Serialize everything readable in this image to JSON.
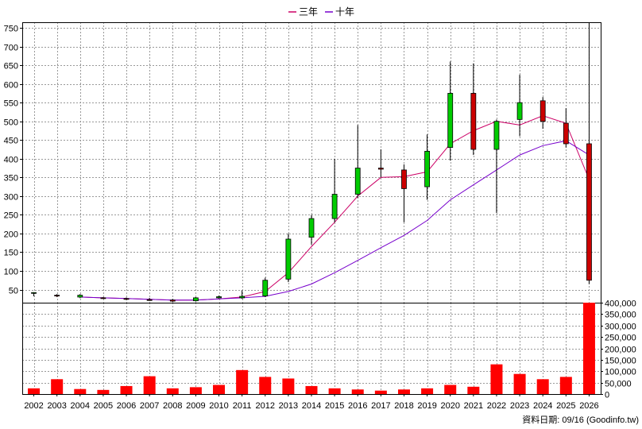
{
  "chart_data": {
    "type": "candlestick",
    "legend": [
      {
        "name": "三年",
        "color": "#cc0066"
      },
      {
        "name": "十年",
        "color": "#7700cc"
      }
    ],
    "legend_position": "top-center",
    "grid": true,
    "footer": "資料日期: 09/16 (Goodinfo.tw)",
    "price_axis": {
      "ticks": [
        50,
        100,
        150,
        200,
        250,
        300,
        350,
        400,
        450,
        500,
        550,
        600,
        650,
        700,
        750
      ],
      "range": [
        15,
        765
      ]
    },
    "volume_axis": {
      "ticks": [
        "0",
        "50,000",
        "100,000",
        "150,000",
        "200,000",
        "250,000",
        "300,000",
        "350,000",
        "400,000"
      ],
      "range": [
        0,
        400000
      ]
    },
    "years": [
      "2002",
      "2003",
      "2004",
      "2005",
      "2006",
      "2007",
      "2008",
      "2009",
      "2010",
      "2011",
      "2012",
      "2013",
      "2014",
      "2015",
      "2016",
      "2017",
      "2018",
      "2019",
      "2020",
      "2021",
      "2022",
      "2023",
      "2024",
      "2025",
      "2026"
    ],
    "candles": [
      {
        "open": 40,
        "high": 43,
        "low": 32,
        "close": 42
      },
      {
        "open": 35,
        "high": 38,
        "low": 30,
        "close": 34
      },
      {
        "open": 30,
        "high": 38,
        "low": 27,
        "close": 35
      },
      {
        "open": 28,
        "high": 30,
        "low": 25,
        "close": 27
      },
      {
        "open": 26,
        "high": 29,
        "low": 22,
        "close": 24
      },
      {
        "open": 23,
        "high": 28,
        "low": 20,
        "close": 22
      },
      {
        "open": 22,
        "high": 25,
        "low": 17,
        "close": 19
      },
      {
        "open": 20,
        "high": 30,
        "low": 18,
        "close": 28
      },
      {
        "open": 28,
        "high": 34,
        "low": 26,
        "close": 31
      },
      {
        "open": 28,
        "high": 48,
        "low": 25,
        "close": 32
      },
      {
        "open": 33,
        "high": 82,
        "low": 30,
        "close": 75
      },
      {
        "open": 78,
        "high": 200,
        "low": 70,
        "close": 185
      },
      {
        "open": 190,
        "high": 250,
        "low": 170,
        "close": 240
      },
      {
        "open": 240,
        "high": 400,
        "low": 230,
        "close": 305
      },
      {
        "open": 305,
        "high": 490,
        "low": 295,
        "close": 375
      },
      {
        "open": 375,
        "high": 425,
        "low": 350,
        "close": 372
      },
      {
        "open": 370,
        "high": 385,
        "low": 230,
        "close": 320
      },
      {
        "open": 325,
        "high": 465,
        "low": 290,
        "close": 420
      },
      {
        "open": 430,
        "high": 660,
        "low": 395,
        "close": 575
      },
      {
        "open": 575,
        "high": 655,
        "low": 410,
        "close": 425
      },
      {
        "open": 425,
        "high": 505,
        "low": 255,
        "close": 500
      },
      {
        "open": 505,
        "high": 625,
        "low": 460,
        "close": 550
      },
      {
        "open": 555,
        "high": 565,
        "low": 480,
        "close": 500
      },
      {
        "open": 495,
        "high": 535,
        "low": 430,
        "close": 440
      },
      {
        "open": 440,
        "high": 765,
        "low": 65,
        "close": 75
      }
    ],
    "series": [
      {
        "name": "三年",
        "values": [
          null,
          null,
          30,
          28,
          26,
          24,
          22,
          22,
          25,
          30,
          45,
          95,
          165,
          230,
          300,
          350,
          352,
          365,
          440,
          475,
          500,
          490,
          515,
          495,
          345
        ]
      },
      {
        "name": "十年",
        "values": [
          null,
          null,
          30,
          28,
          26,
          24,
          22,
          22,
          25,
          28,
          32,
          45,
          65,
          95,
          128,
          162,
          195,
          235,
          290,
          330,
          370,
          410,
          435,
          448,
          410
        ]
      }
    ],
    "volume": [
      25000,
      65000,
      22000,
      18000,
      35000,
      78000,
      25000,
      30000,
      40000,
      105000,
      75000,
      68000,
      35000,
      25000,
      20000,
      15000,
      20000,
      25000,
      40000,
      32000,
      130000,
      88000,
      65000,
      75000,
      400000
    ]
  }
}
